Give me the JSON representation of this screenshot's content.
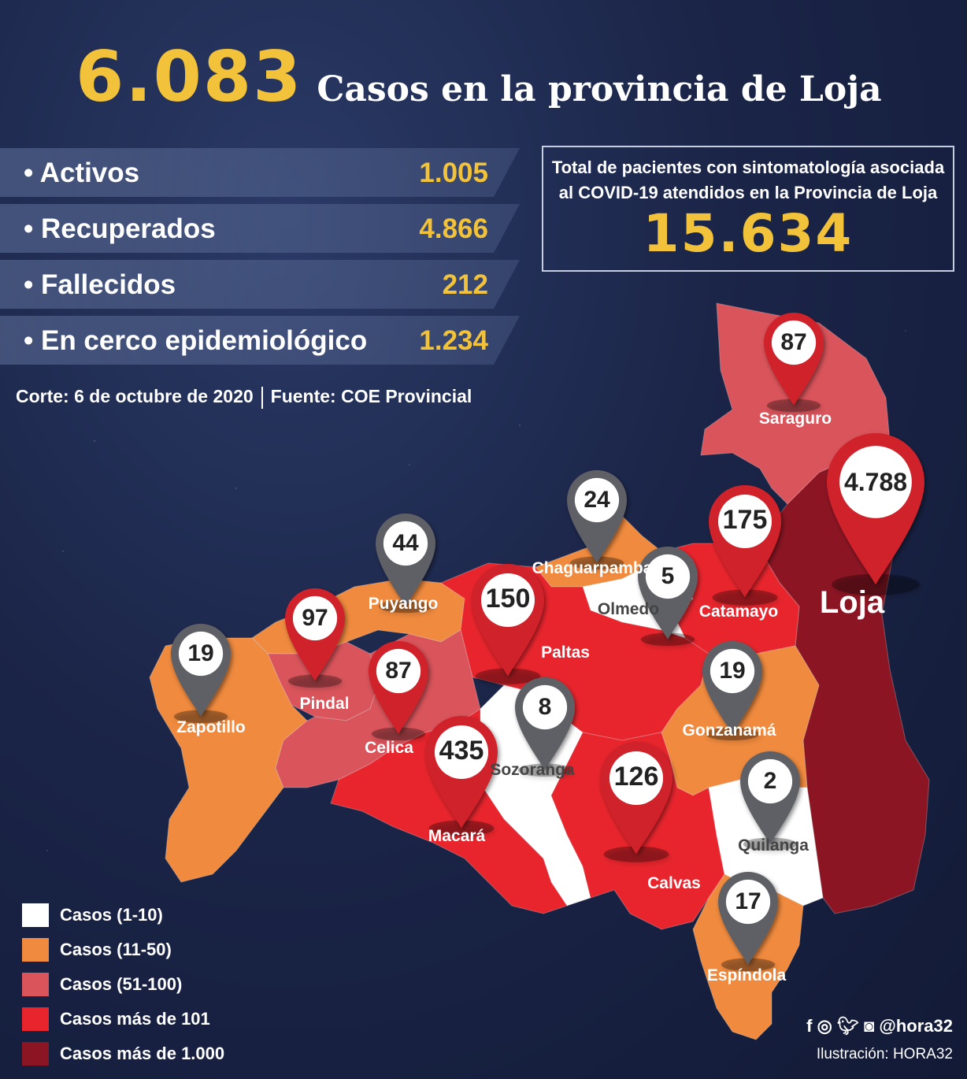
{
  "header": {
    "total": "6.083",
    "title": "Casos en la provincia de Loja"
  },
  "stats": [
    {
      "label": "• Activos",
      "value": "1.005"
    },
    {
      "label": "• Recuperados",
      "value": "4.866"
    },
    {
      "label": "• Fallecidos",
      "value": "212"
    },
    {
      "label": "• En cerco epidemiológico",
      "value": "1.234"
    }
  ],
  "source": {
    "cutoff": "Corte:  6 de octubre de 2020",
    "origin": "Fuente: COE Provincial"
  },
  "total_box": {
    "line1": "Total de pacientes con sintomatología asociada",
    "line2": "al COVID-19 atendidos en la Provincia de Loja",
    "value": "15.634"
  },
  "colors": {
    "range_1_10": "#ffffff",
    "range_11_50": "#ef8a3e",
    "range_51_100": "#d9545b",
    "range_101_plus": "#e8252d",
    "range_1000_plus": "#8b1523",
    "pin_red": "#d0202a",
    "pin_gray": "#5f6066"
  },
  "cantons": [
    {
      "name": "Saraguro",
      "cases": "87",
      "category": "range_51_100"
    },
    {
      "name": "Loja",
      "cases": "4.788",
      "category": "range_1000_plus"
    },
    {
      "name": "Catamayo",
      "cases": "175",
      "category": "range_101_plus"
    },
    {
      "name": "Chaguarpamba",
      "cases": "24",
      "category": "range_11_50"
    },
    {
      "name": "Olmedo",
      "cases": "5",
      "category": "range_1_10"
    },
    {
      "name": "Puyango",
      "cases": "44",
      "category": "range_11_50"
    },
    {
      "name": "Paltas",
      "cases": "150",
      "category": "range_101_plus"
    },
    {
      "name": "Pindal",
      "cases": "97",
      "category": "range_51_100"
    },
    {
      "name": "Zapotillo",
      "cases": "19",
      "category": "range_11_50"
    },
    {
      "name": "Celica",
      "cases": "87",
      "category": "range_51_100"
    },
    {
      "name": "Sozoranga",
      "cases": "8",
      "category": "range_1_10"
    },
    {
      "name": "Macará",
      "cases": "435",
      "category": "range_101_plus"
    },
    {
      "name": "Gonzanamá",
      "cases": "19",
      "category": "range_11_50"
    },
    {
      "name": "Calvas",
      "cases": "126",
      "category": "range_101_plus"
    },
    {
      "name": "Quilanga",
      "cases": "2",
      "category": "range_1_10"
    },
    {
      "name": "Espíndola",
      "cases": "17",
      "category": "range_11_50"
    }
  ],
  "legend": [
    {
      "label": "Casos (1-10)",
      "category": "range_1_10"
    },
    {
      "label": "Casos (11-50)",
      "category": "range_11_50"
    },
    {
      "label": "Casos (51-100)",
      "category": "range_51_100"
    },
    {
      "label": "Casos más de 101",
      "category": "range_101_plus"
    },
    {
      "label": "Casos más de 1.000",
      "category": "range_1000_plus"
    }
  ],
  "footer": {
    "social_icons": [
      "facebook-icon",
      "whatsapp-icon",
      "twitter-icon",
      "instagram-icon"
    ],
    "handle": "@hora32",
    "credit": "Ilustración: HORA32"
  }
}
